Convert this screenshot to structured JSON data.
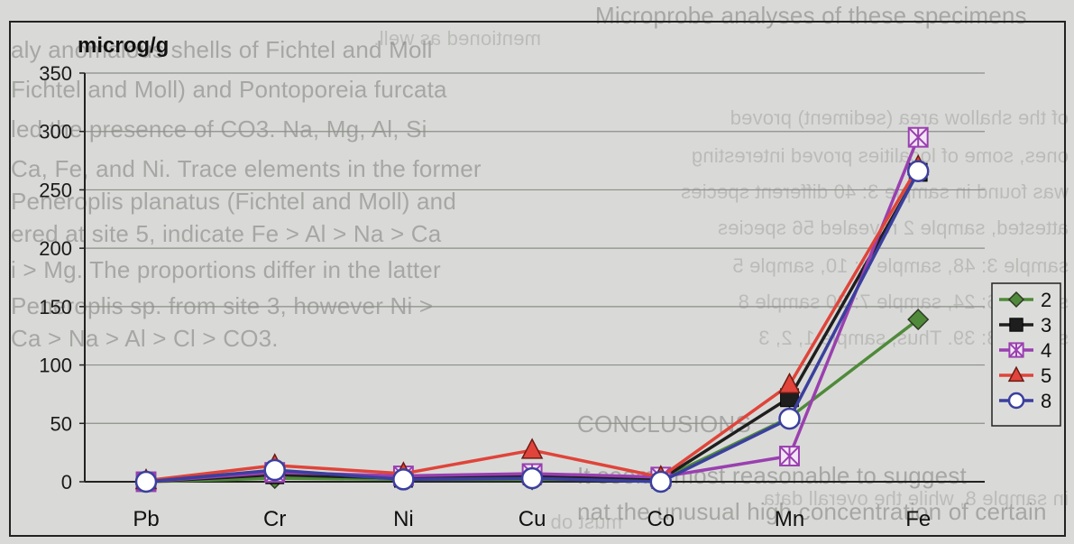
{
  "chart_data": {
    "type": "line",
    "ylabel": "microg/g",
    "categories": [
      "Pb",
      "Cr",
      "Ni",
      "Cu",
      "Co",
      "Mn",
      "Fe"
    ],
    "ylim": [
      0,
      350
    ],
    "yticks": [
      0,
      50,
      100,
      150,
      200,
      250,
      300,
      350
    ],
    "grid": true,
    "legend_position": "right",
    "series": [
      {
        "name": "2",
        "color": "#4f8a3a",
        "marker": "diamond",
        "values": [
          0,
          3,
          2,
          2,
          2,
          55,
          139
        ]
      },
      {
        "name": "3",
        "color": "#1e1e1e",
        "marker": "square",
        "values": [
          0,
          6,
          3,
          5,
          2,
          72,
          265
        ]
      },
      {
        "name": "4",
        "color": "#9a3fb0",
        "marker": "xbox",
        "values": [
          0,
          8,
          5,
          7,
          4,
          22,
          295
        ]
      },
      {
        "name": "5",
        "color": "#e0443a",
        "marker": "triangle",
        "values": [
          1,
          14,
          7,
          27,
          4,
          83,
          270
        ]
      },
      {
        "name": "8",
        "color": "#3b3f9e",
        "marker": "circle",
        "values": [
          0,
          10,
          2,
          3,
          0,
          54,
          266
        ]
      }
    ]
  },
  "background_text": {
    "lines": [
      "Microprobe analyses of these specimens",
      "aly anomalous shells of Fichtel and Moll",
      "Fichtel and Moll) and Pontoporeia furcata",
      "led the presence of CO3. Na, Mg, Al, Si",
      "Ca, Fe, and Ni. Trace elements in the former",
      "Peneroplis planatus (Fichtel and Moll) and",
      "ered at site 5, indicate Fe > Al > Na > Ca",
      "i > Mg. The proportions differ in the latter",
      "Peneroplis sp. from site 3, however Ni >",
      "Ca > Na > Al > Cl > CO3."
    ],
    "lower_lines": [
      "CONCLUSIONS",
      "It seems most reasonable to suggest",
      "nat the unusual high concentration of certain"
    ],
    "mirrored_lines": [
      "mentioned as well.",
      "of the shallow area (sediment) proved",
      "ones, some of localities proved interesting",
      "was found in sample 3: 40 different species",
      "attested, sample 2 revealed 56 species",
      "sample 3: 48, sample 4: 10, sample 5",
      "sample 6: 24, sample 7: 30 sample 8",
      "sample 8: 39. Thus, sample 1, 2, 3",
      "in sample 8, while the overall data",
      "must ob"
    ]
  }
}
